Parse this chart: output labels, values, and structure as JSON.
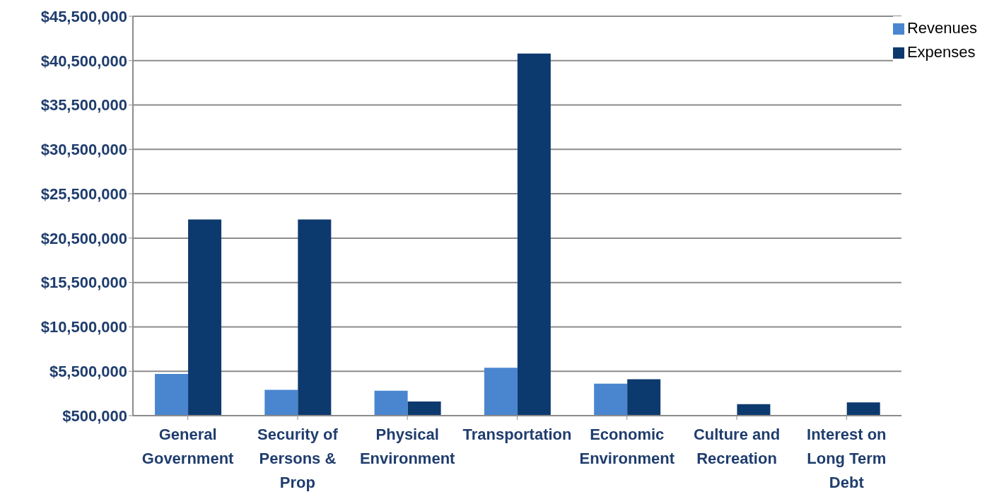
{
  "chart_data": {
    "type": "bar",
    "categories": [
      "General Government",
      "Security of Persons & Prop",
      "Physical Environment",
      "Transportation",
      "Economic Environment",
      "Culture and Recreation",
      "Interest on Long Term Debt"
    ],
    "series": [
      {
        "name": "Revenues",
        "color": "#4a86d0",
        "values": [
          5200000,
          3400000,
          3300000,
          5900000,
          4100000,
          null,
          null
        ]
      },
      {
        "name": "Expenses",
        "color": "#0d3a6e",
        "values": [
          22600000,
          22600000,
          2100000,
          41300000,
          4600000,
          1800000,
          2000000
        ]
      }
    ],
    "ylim": [
      500000,
      45500000
    ],
    "yticks": [
      {
        "value": 500000,
        "label": "$500,000"
      },
      {
        "value": 5500000,
        "label": "$5,500,000"
      },
      {
        "value": 10500000,
        "label": "$10,500,000"
      },
      {
        "value": 15500000,
        "label": "$15,500,000"
      },
      {
        "value": 20500000,
        "label": "$20,500,000"
      },
      {
        "value": 25500000,
        "label": "$25,500,000"
      },
      {
        "value": 30500000,
        "label": "$30,500,000"
      },
      {
        "value": 35500000,
        "label": "$35,500,000"
      },
      {
        "value": 40500000,
        "label": "$40,500,000"
      },
      {
        "value": 45500000,
        "label": "$45,500,000"
      }
    ],
    "grid": "y",
    "legend": "top right"
  }
}
